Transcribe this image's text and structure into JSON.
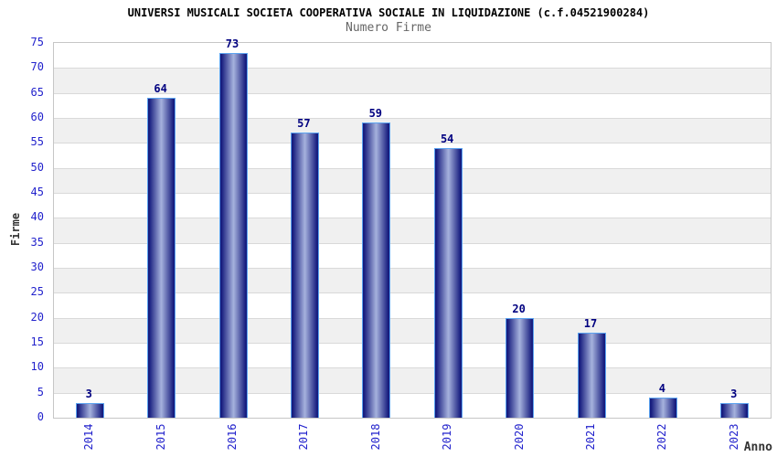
{
  "chart_data": {
    "type": "bar",
    "title": "UNIVERSI MUSICALI SOCIETA COOPERATIVA SOCIALE IN LIQUIDAZIONE (c.f.04521900284)",
    "subtitle": "Numero Firme",
    "categories": [
      "2014",
      "2015",
      "2016",
      "2017",
      "2018",
      "2019",
      "2020",
      "2021",
      "2022",
      "2023"
    ],
    "values": [
      3,
      64,
      73,
      57,
      59,
      54,
      20,
      17,
      4,
      3
    ],
    "xlabel": "Anno",
    "ylabel": "Firme",
    "ylim": [
      0,
      75
    ],
    "y_ticks": [
      0,
      5,
      10,
      15,
      20,
      25,
      30,
      35,
      40,
      45,
      50,
      55,
      60,
      65,
      70,
      75
    ],
    "grid": true,
    "grid_style": "alternating-horizontal-bands",
    "legend": "none",
    "bar_value_labels": [
      3,
      64,
      73,
      57,
      59,
      54,
      20,
      17,
      4,
      3
    ]
  },
  "colors": {
    "title": "#000000",
    "subtitle": "#666666",
    "tick_label": "#2222cc",
    "value_label": "#000080",
    "axis_title": "#333333",
    "stripe_gray": "#f0f0f0",
    "stripe_white": "#ffffff",
    "gridline": "#d9d9d9",
    "plot_border": "#c6c6c6",
    "bar_border": "#5ba3f0",
    "bar_dark": "#161c7e",
    "bar_light": "#a6b2dd"
  }
}
